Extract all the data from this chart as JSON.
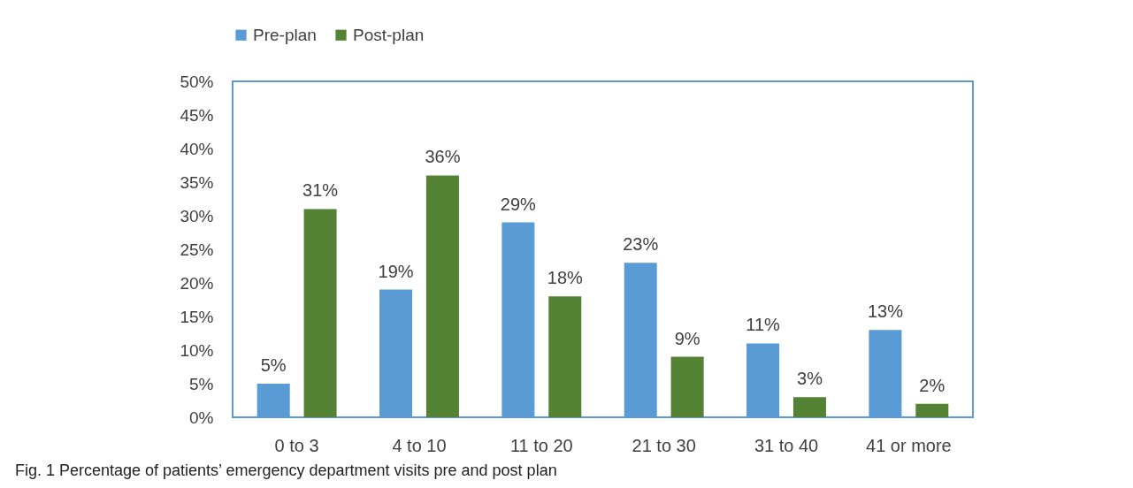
{
  "chart_data": {
    "type": "bar",
    "categories": [
      "0 to 3",
      "4 to 10",
      "11 to 20",
      "21 to 30",
      "31 to 40",
      "41 or more"
    ],
    "series": [
      {
        "name": "Pre-plan",
        "color": "#5b9bd5",
        "values": [
          5,
          19,
          29,
          23,
          11,
          13
        ],
        "value_labels": [
          "5%",
          "19%",
          "29%",
          "23%",
          "11%",
          "13%"
        ]
      },
      {
        "name": "Post-plan",
        "color": "#548235",
        "values": [
          31,
          36,
          18,
          9,
          3,
          2
        ],
        "value_labels": [
          "31%",
          "36%",
          "18%",
          "9%",
          "3%",
          "2%"
        ]
      }
    ],
    "ylim": [
      0,
      50
    ],
    "yticks": [
      {
        "value": 0,
        "label": "0%"
      },
      {
        "value": 5,
        "label": "5%"
      },
      {
        "value": 10,
        "label": "10%"
      },
      {
        "value": 15,
        "label": "15%"
      },
      {
        "value": 20,
        "label": "20%"
      },
      {
        "value": 25,
        "label": "25%"
      },
      {
        "value": 30,
        "label": "30%"
      },
      {
        "value": 35,
        "label": "35%"
      },
      {
        "value": 40,
        "label": "40%"
      },
      {
        "value": 45,
        "label": "45%"
      },
      {
        "value": 50,
        "label": "50%"
      }
    ],
    "grid": false,
    "legend": "top",
    "annotations": [
      "Fig. 1  Percentage of patients’ emergency department visits pre and post plan"
    ]
  }
}
